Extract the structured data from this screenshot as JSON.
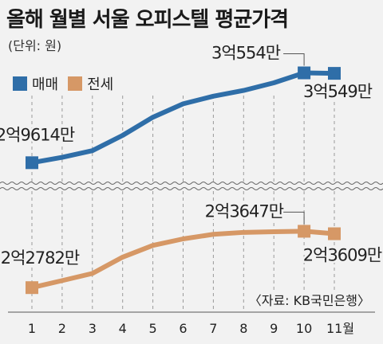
{
  "title": "올해 월별 서울 오피스텔 평균가격",
  "unit": "(단위: 원)",
  "source": "〈자료: KB국민은행〉",
  "legend": [
    {
      "name": "매매",
      "color": "#2f6ea8"
    },
    {
      "name": "전세",
      "color": "#d69866"
    }
  ],
  "chart_data": {
    "type": "line",
    "categories": [
      "1",
      "2",
      "3",
      "4",
      "5",
      "6",
      "7",
      "8",
      "9",
      "10",
      "11월"
    ],
    "series": [
      {
        "name": "매매",
        "values": [
          296140000,
          296700000,
          297400000,
          299000000,
          300900000,
          302300000,
          303100000,
          303700000,
          304500000,
          305540000,
          305490000
        ],
        "labels": [
          {
            "index": 0,
            "text": "2억9614만"
          },
          {
            "index": 9,
            "text": "3억554만"
          },
          {
            "index": 10,
            "text": "3억549만"
          }
        ]
      },
      {
        "name": "전세",
        "values": [
          227820000,
          228900000,
          230000000,
          232500000,
          234300000,
          235300000,
          236000000,
          236300000,
          236400000,
          236470000,
          236090000
        ],
        "labels": [
          {
            "index": 0,
            "text": "2억2782만"
          },
          {
            "index": 9,
            "text": "2억3647만"
          },
          {
            "index": 10,
            "text": "2억3609만"
          }
        ]
      }
    ],
    "axis_break": true,
    "grid": "vertical-dashed"
  }
}
